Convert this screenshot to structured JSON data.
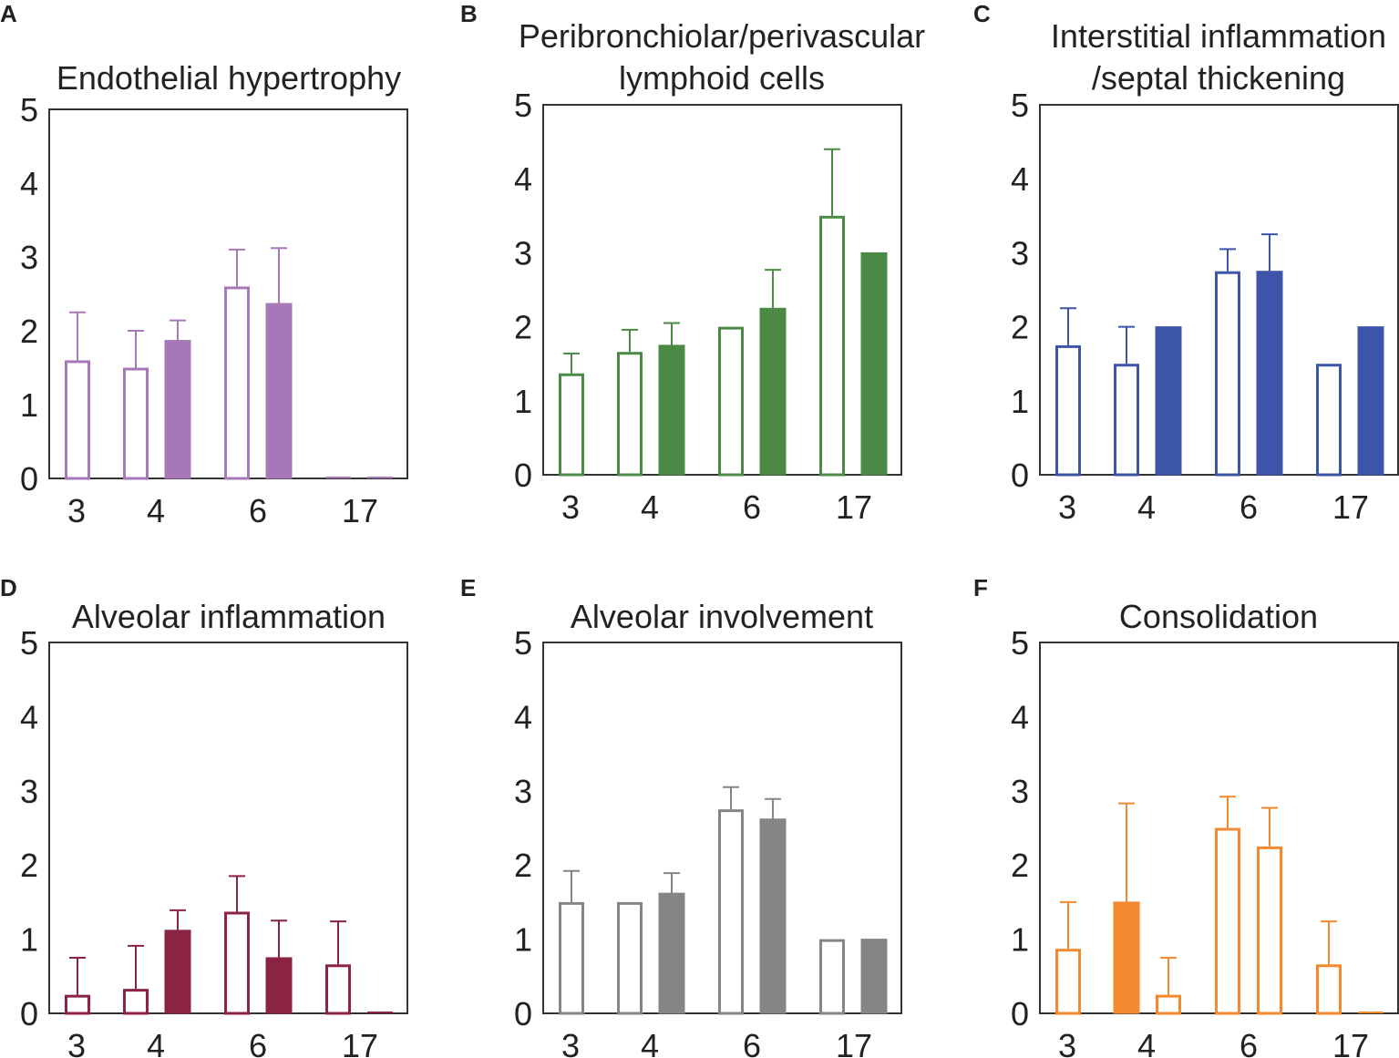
{
  "chart_data": [
    {
      "panel_label": "A",
      "type": "bar",
      "title": [
        "Endothelial hypertrophy"
      ],
      "color": "#a678b8",
      "ylim": [
        0,
        5
      ],
      "yticks": [
        "0",
        "1",
        "2",
        "3",
        "4",
        "5"
      ],
      "categories": [
        "3",
        "4",
        "6",
        "17"
      ],
      "bars": [
        {
          "category": "3",
          "filled": false,
          "value": 1.6,
          "error": 0.65
        },
        {
          "category": "4",
          "filled": false,
          "value": 1.5,
          "error": 0.5
        },
        {
          "category": "4",
          "filled": true,
          "value": 1.87,
          "error": 0.27
        },
        {
          "category": "6",
          "filled": false,
          "value": 2.6,
          "error": 0.5
        },
        {
          "category": "6",
          "filled": true,
          "value": 2.37,
          "error": 0.75
        },
        {
          "category": "17",
          "filled": false,
          "value": 0,
          "error": 0
        },
        {
          "category": "17",
          "filled": false,
          "value": 0,
          "error": 0
        }
      ]
    },
    {
      "panel_label": "B",
      "type": "bar",
      "title": [
        "Peribronchiolar/perivascular",
        "lymphoid cells"
      ],
      "color": "#4a8a45",
      "ylim": [
        0,
        5
      ],
      "yticks": [
        "0",
        "1",
        "2",
        "3",
        "4",
        "5"
      ],
      "categories": [
        "3",
        "4",
        "6",
        "17"
      ],
      "bars": [
        {
          "category": "3",
          "filled": false,
          "value": 1.37,
          "error": 0.27
        },
        {
          "category": "4",
          "filled": false,
          "value": 1.66,
          "error": 0.3
        },
        {
          "category": "4",
          "filled": true,
          "value": 1.75,
          "error": 0.3
        },
        {
          "category": "6",
          "filled": false,
          "value": 2.0,
          "error": 0
        },
        {
          "category": "6",
          "filled": true,
          "value": 2.25,
          "error": 0.52
        },
        {
          "category": "17",
          "filled": false,
          "value": 3.5,
          "error": 0.9
        },
        {
          "category": "17",
          "filled": true,
          "value": 3.0,
          "error": 0
        }
      ]
    },
    {
      "panel_label": "C",
      "type": "bar",
      "title": [
        "Interstitial inflammation",
        "/septal thickening"
      ],
      "color": "#3d55a8",
      "ylim": [
        0,
        5
      ],
      "yticks": [
        "0",
        "1",
        "2",
        "3",
        "4",
        "5"
      ],
      "categories": [
        "3",
        "4",
        "6",
        "17"
      ],
      "bars": [
        {
          "category": "3",
          "filled": false,
          "value": 1.75,
          "error": 0.5
        },
        {
          "category": "4",
          "filled": false,
          "value": 1.5,
          "error": 0.5
        },
        {
          "category": "4",
          "filled": true,
          "value": 2.0,
          "error": 0
        },
        {
          "category": "6",
          "filled": false,
          "value": 2.75,
          "error": 0.3
        },
        {
          "category": "6",
          "filled": true,
          "value": 2.75,
          "error": 0.5
        },
        {
          "category": "17",
          "filled": false,
          "value": 1.5,
          "error": 0
        },
        {
          "category": "17",
          "filled": true,
          "value": 2.0,
          "error": 0
        }
      ]
    },
    {
      "panel_label": "D",
      "type": "bar",
      "title": [
        "Alveolar inflammation"
      ],
      "color": "#8a2442",
      "ylim": [
        0,
        5
      ],
      "yticks": [
        "0",
        "1",
        "2",
        "3",
        "4",
        "5"
      ],
      "categories": [
        "3",
        "4",
        "6",
        "17"
      ],
      "bars": [
        {
          "category": "3",
          "filled": false,
          "value": 0.25,
          "error": 0.5
        },
        {
          "category": "4",
          "filled": false,
          "value": 0.33,
          "error": 0.58
        },
        {
          "category": "4",
          "filled": true,
          "value": 1.12,
          "error": 0.27
        },
        {
          "category": "6",
          "filled": false,
          "value": 1.37,
          "error": 0.48
        },
        {
          "category": "6",
          "filled": true,
          "value": 0.75,
          "error": 0.5
        },
        {
          "category": "17",
          "filled": false,
          "value": 0.66,
          "error": 0.58
        },
        {
          "category": "17",
          "filled": false,
          "value": 0,
          "error": 0
        }
      ]
    },
    {
      "panel_label": "E",
      "type": "bar",
      "title": [
        "Alveolar involvement"
      ],
      "color": "#858585",
      "ylim": [
        0,
        5
      ],
      "yticks": [
        "0",
        "1",
        "2",
        "3",
        "4",
        "5"
      ],
      "categories": [
        "3",
        "4",
        "6",
        "17"
      ],
      "bars": [
        {
          "category": "3",
          "filled": false,
          "value": 1.5,
          "error": 0.42
        },
        {
          "category": "4",
          "filled": false,
          "value": 1.5,
          "error": 0
        },
        {
          "category": "4",
          "filled": true,
          "value": 1.62,
          "error": 0.27
        },
        {
          "category": "6",
          "filled": false,
          "value": 2.75,
          "error": 0.3
        },
        {
          "category": "6",
          "filled": true,
          "value": 2.62,
          "error": 0.27
        },
        {
          "category": "17",
          "filled": false,
          "value": 1.0,
          "error": 0
        },
        {
          "category": "17",
          "filled": true,
          "value": 1.0,
          "error": 0
        }
      ]
    },
    {
      "panel_label": "F",
      "type": "bar",
      "title": [
        "Consolidation"
      ],
      "color": "#f4892f",
      "ylim": [
        0,
        5
      ],
      "yticks": [
        "0",
        "1",
        "2",
        "3",
        "4",
        "5"
      ],
      "categories": [
        "3",
        "4",
        "6",
        "17"
      ],
      "bars": [
        {
          "category": "3",
          "filled": false,
          "value": 0.87,
          "error": 0.63
        },
        {
          "category": "4",
          "filled": true,
          "value": 1.5,
          "error": 1.33
        },
        {
          "category": "4",
          "filled": false,
          "value": 0.25,
          "error": 0.5
        },
        {
          "category": "6",
          "filled": false,
          "value": 2.5,
          "error": 0.42
        },
        {
          "category": "6",
          "filled": false,
          "value": 2.25,
          "error": 0.52
        },
        {
          "category": "17",
          "filled": false,
          "value": 0.66,
          "error": 0.58
        },
        {
          "category": "17",
          "filled": false,
          "value": 0,
          "error": 0
        }
      ]
    }
  ]
}
